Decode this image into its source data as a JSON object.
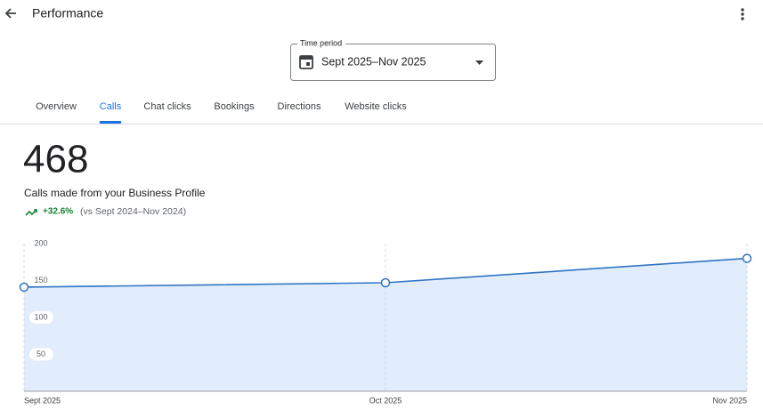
{
  "header": {
    "title": "Performance"
  },
  "time_period": {
    "label": "Time period",
    "value": "Sept 2025–Nov 2025"
  },
  "tabs": [
    {
      "label": "Overview",
      "active": false
    },
    {
      "label": "Calls",
      "active": true
    },
    {
      "label": "Chat clicks",
      "active": false
    },
    {
      "label": "Bookings",
      "active": false
    },
    {
      "label": "Directions",
      "active": false
    },
    {
      "label": "Website clicks",
      "active": false
    }
  ],
  "summary": {
    "total": 468,
    "description": "Calls made from your Business Profile",
    "change": "+32.6%",
    "comparison": "(vs Sept 2024–Nov 2024)"
  },
  "chart_data": {
    "type": "line",
    "categories": [
      "Sept 2025",
      "Oct 2025",
      "Nov 2025"
    ],
    "values": [
      141,
      147,
      180
    ],
    "color": "#2f74c0",
    "fill": "#e1edfc",
    "ylim": [
      0,
      200
    ],
    "yticks": [
      50,
      100,
      150,
      200
    ],
    "grid": true
  }
}
